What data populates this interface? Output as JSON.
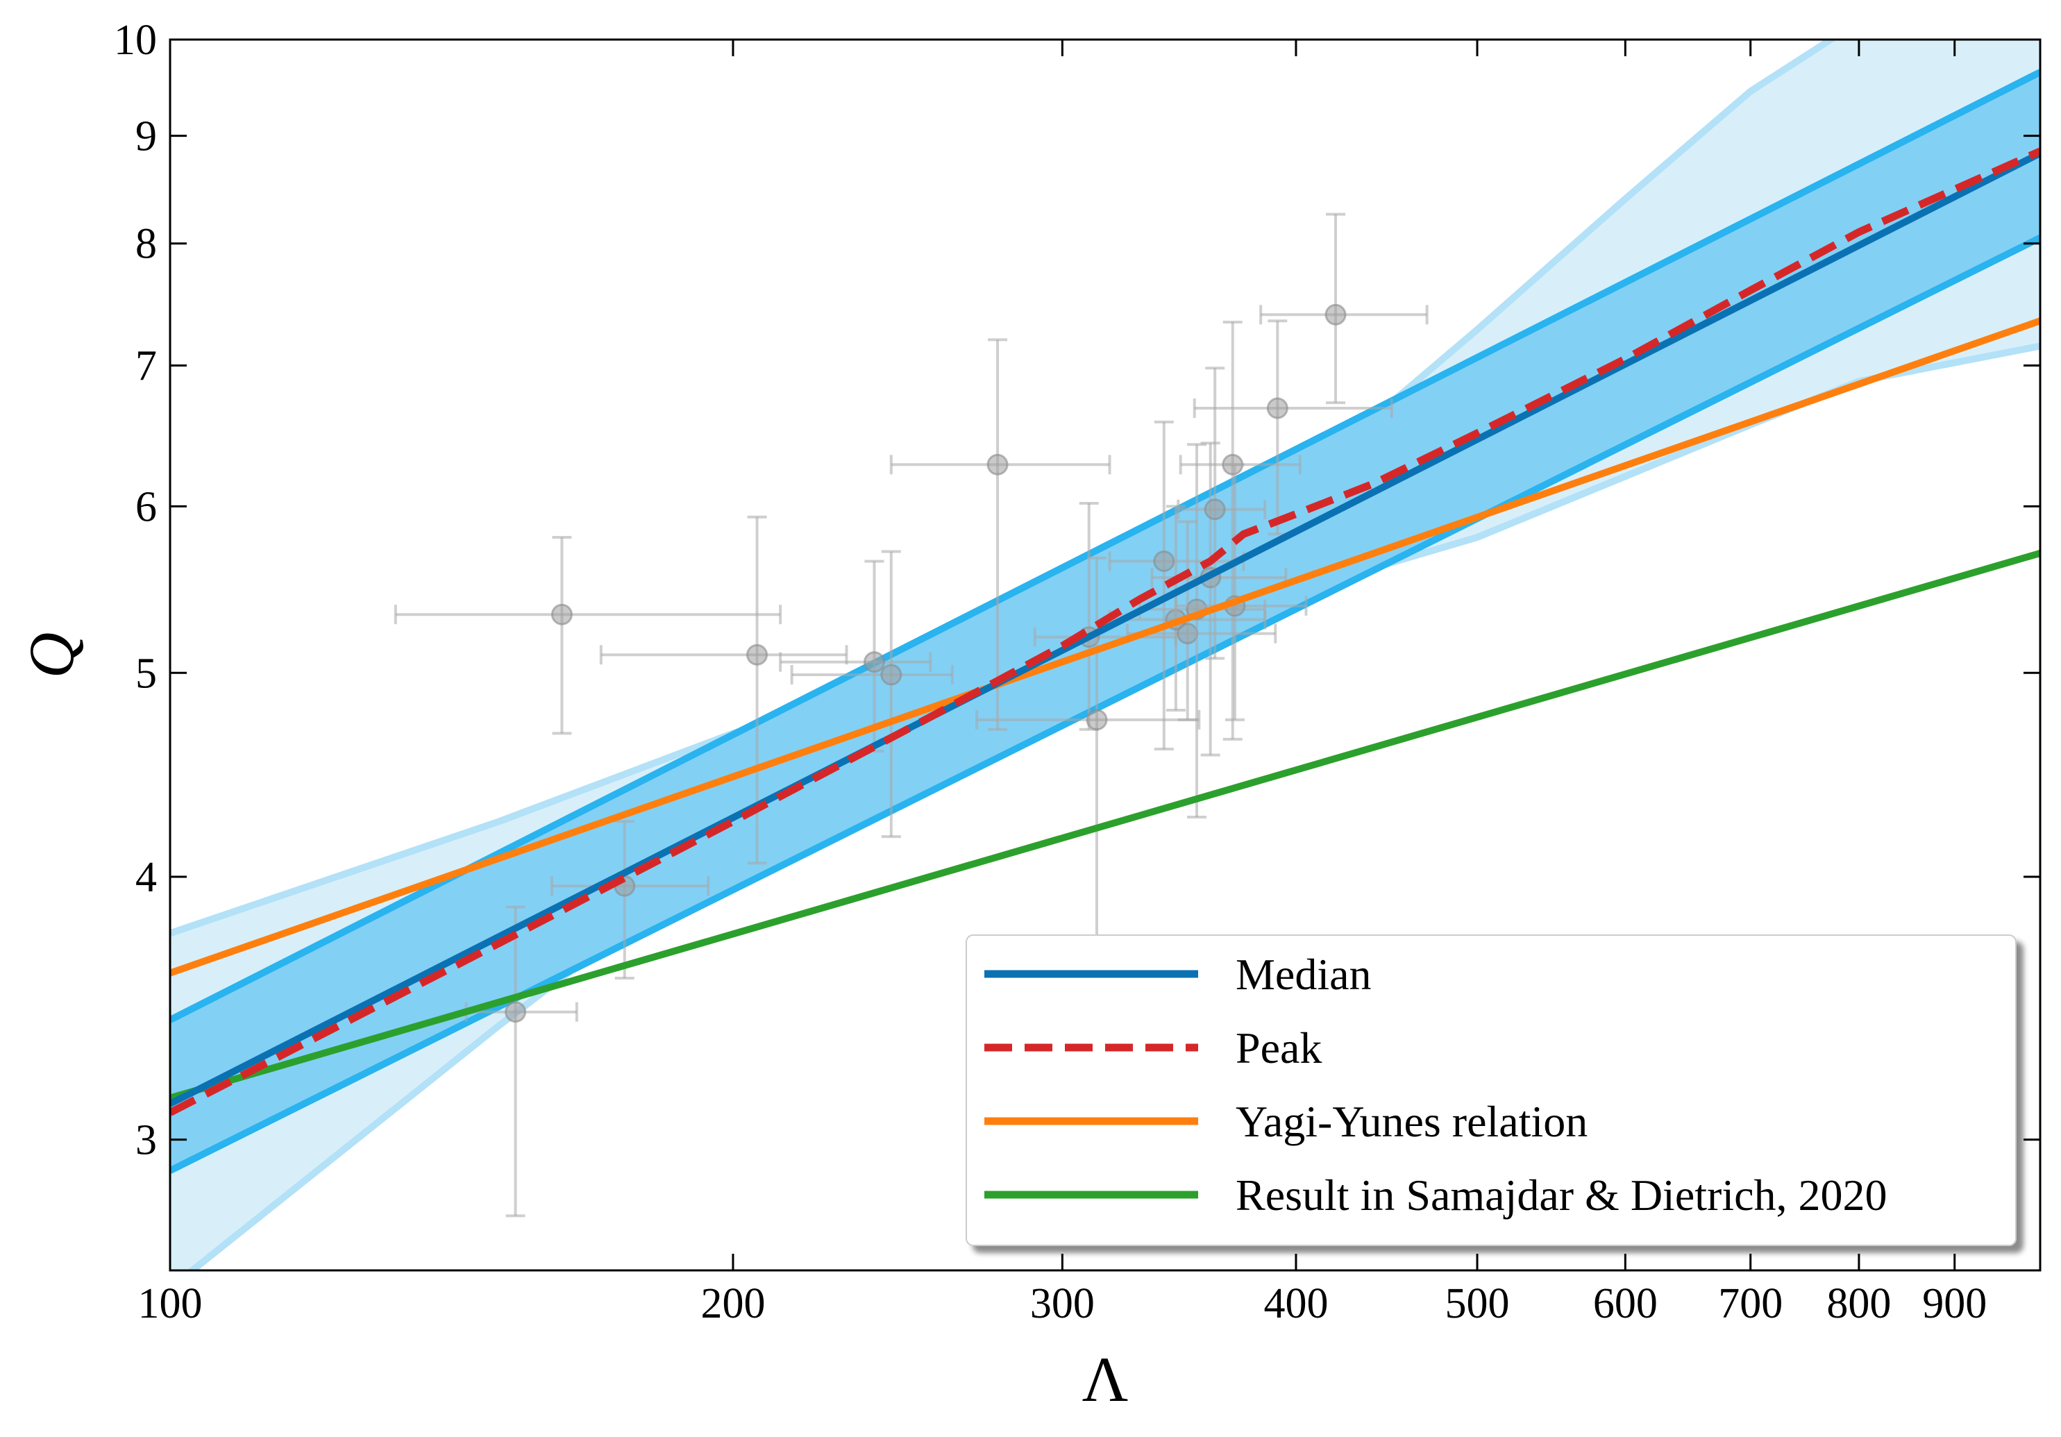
{
  "chart_data": {
    "type": "line",
    "xlabel": "Λ",
    "ylabel": "Q",
    "xscale": "log",
    "yscale": "log",
    "xlim": [
      100,
      1000
    ],
    "ylim": [
      2.6,
      10
    ],
    "grid": false,
    "legend_position": "lower-right",
    "x_ticks": [
      {
        "value": 100,
        "label": "100"
      },
      {
        "value": 200,
        "label": "200"
      },
      {
        "value": 300,
        "label": "300"
      },
      {
        "value": 400,
        "label": "400"
      },
      {
        "value": 500,
        "label": "500"
      },
      {
        "value": 600,
        "label": "600"
      },
      {
        "value": 700,
        "label": "700"
      },
      {
        "value": 800,
        "label": "800"
      },
      {
        "value": 900,
        "label": "900"
      }
    ],
    "y_ticks": [
      {
        "value": 3,
        "label": "3"
      },
      {
        "value": 4,
        "label": "4"
      },
      {
        "value": 5,
        "label": "5"
      },
      {
        "value": 6,
        "label": "6"
      },
      {
        "value": 7,
        "label": "7"
      },
      {
        "value": 8,
        "label": "8"
      },
      {
        "value": 9,
        "label": "9"
      },
      {
        "value": 10,
        "label": "10"
      }
    ],
    "bands": [
      {
        "kind": "outer",
        "color": "#d8effa",
        "edge_color": "#b3e1f7",
        "x": [
          100,
          150,
          200,
          250,
          300,
          350,
          400,
          500,
          600,
          700,
          800,
          1000
        ],
        "lower": [
          2.55,
          3.4,
          4.13,
          4.62,
          5.0,
          5.27,
          5.47,
          5.8,
          6.2,
          6.56,
          6.88,
          7.15
        ],
        "upper": [
          3.76,
          4.25,
          4.68,
          4.97,
          5.3,
          5.78,
          6.15,
          7.28,
          8.4,
          9.45,
          10.2,
          10.8
        ]
      },
      {
        "kind": "inner",
        "color": "#83d0f5",
        "edge_color": "#29b3ef",
        "x": [
          100,
          1000
        ],
        "lower": [
          2.9,
          8.05
        ],
        "upper": [
          3.42,
          9.65
        ]
      }
    ],
    "series": [
      {
        "name": "Median",
        "color": "#0a72b3",
        "style": "solid",
        "x": [
          100,
          1000
        ],
        "y": [
          3.12,
          8.83
        ]
      },
      {
        "name": "Peak",
        "color": "#d62728",
        "style": "dashed",
        "x": [
          100,
          150,
          200,
          250,
          300,
          330,
          360,
          375,
          400,
          440,
          500,
          600,
          700,
          800,
          1000
        ],
        "y": [
          3.09,
          3.72,
          4.25,
          4.72,
          5.15,
          5.42,
          5.65,
          5.82,
          5.95,
          6.15,
          6.5,
          7.05,
          7.6,
          8.1,
          8.85
        ]
      },
      {
        "name": "Yagi-Yunes relation",
        "color": "#ff7f0e",
        "style": "solid",
        "x": [
          100,
          1000
        ],
        "y": [
          3.6,
          7.35
        ]
      },
      {
        "name": "Result in Samajdar & Dietrich, 2020",
        "color": "#2ca02c",
        "style": "solid",
        "x": [
          100,
          1000
        ],
        "y": [
          3.14,
          5.7
        ]
      }
    ],
    "scatter_points": [
      {
        "x": 153,
        "y": 3.45,
        "xerr": [
          144,
          165
        ],
        "yerr": [
          2.76,
          3.87
        ]
      },
      {
        "x": 162,
        "y": 5.33,
        "xerr": [
          132,
          212
        ],
        "yerr": [
          4.68,
          5.8
        ]
      },
      {
        "x": 175,
        "y": 3.96,
        "xerr": [
          160,
          194
        ],
        "yerr": [
          3.58,
          4.25
        ]
      },
      {
        "x": 206,
        "y": 5.1,
        "xerr": [
          170,
          230
        ],
        "yerr": [
          4.06,
          5.93
        ]
      },
      {
        "x": 238,
        "y": 5.06,
        "xerr": [
          212,
          255
        ],
        "yerr": [
          4.59,
          5.65
        ]
      },
      {
        "x": 243,
        "y": 4.99,
        "xerr": [
          215,
          262
        ],
        "yerr": [
          4.18,
          5.71
        ]
      },
      {
        "x": 277,
        "y": 6.28,
        "xerr": [
          243,
          318
        ],
        "yerr": [
          4.7,
          7.2
        ]
      },
      {
        "x": 310,
        "y": 5.2,
        "xerr": [
          290,
          345
        ],
        "yerr": [
          4.7,
          6.02
        ]
      },
      {
        "x": 313,
        "y": 4.75,
        "xerr": [
          270,
          355
        ],
        "yerr": [
          3.73,
          5.67
        ]
      },
      {
        "x": 340,
        "y": 5.65,
        "xerr": [
          318,
          375
        ],
        "yerr": [
          4.6,
          6.58
        ]
      },
      {
        "x": 345,
        "y": 5.3,
        "xerr": [
          318,
          385
        ],
        "yerr": [
          4.8,
          6.0
        ]
      },
      {
        "x": 350,
        "y": 5.22,
        "xerr": [
          325,
          390
        ],
        "yerr": [
          4.75,
          5.9
        ]
      },
      {
        "x": 354,
        "y": 5.36,
        "xerr": [
          330,
          385
        ],
        "yerr": [
          4.27,
          6.42
        ]
      },
      {
        "x": 360,
        "y": 5.55,
        "xerr": [
          335,
          395
        ],
        "yerr": [
          4.57,
          6.43
        ]
      },
      {
        "x": 362,
        "y": 5.98,
        "xerr": [
          346,
          385
        ],
        "yerr": [
          5.08,
          6.98
        ]
      },
      {
        "x": 370,
        "y": 6.28,
        "xerr": [
          347,
          402
        ],
        "yerr": [
          4.65,
          7.34
        ]
      },
      {
        "x": 371,
        "y": 5.38,
        "xerr": [
          345,
          405
        ],
        "yerr": [
          4.75,
          6.28
        ]
      },
      {
        "x": 391,
        "y": 6.68,
        "xerr": [
          353,
          450
        ],
        "yerr": [
          5.82,
          7.35
        ]
      },
      {
        "x": 420,
        "y": 7.4,
        "xerr": [
          383,
          470
        ],
        "yerr": [
          6.72,
          8.26
        ]
      }
    ]
  }
}
